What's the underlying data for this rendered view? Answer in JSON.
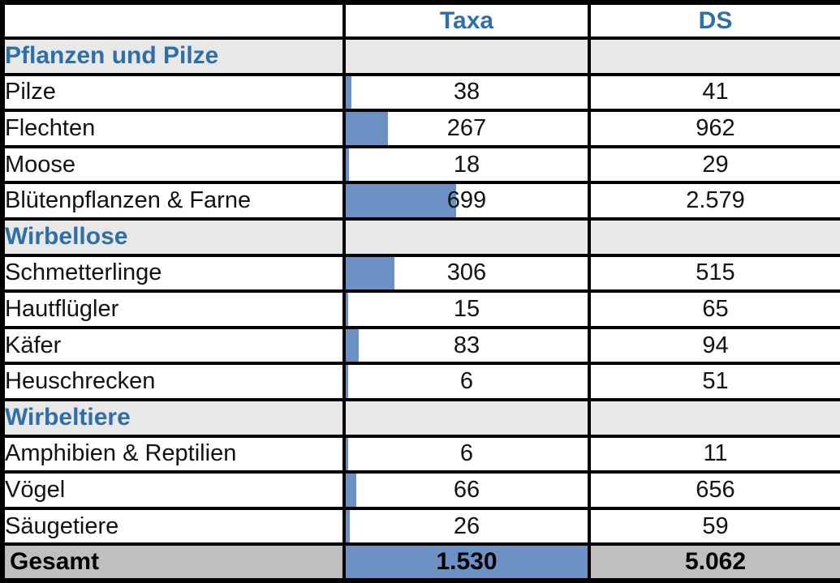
{
  "header": {
    "label_col": "",
    "taxa": "Taxa",
    "ds": "DS"
  },
  "bar_max": 1530,
  "rows": [
    {
      "kind": "section",
      "label": "Pflanzen und Pilze"
    },
    {
      "kind": "data",
      "label": "Pilze",
      "taxa_text": "38",
      "ds_text": "41",
      "taxa_value": 38
    },
    {
      "kind": "data",
      "label": "Flechten",
      "taxa_text": "267",
      "ds_text": "962",
      "taxa_value": 267
    },
    {
      "kind": "data",
      "label": "Moose",
      "taxa_text": "18",
      "ds_text": "29",
      "taxa_value": 18
    },
    {
      "kind": "data",
      "label": "Blütenpflanzen & Farne",
      "taxa_text": "699",
      "ds_text": "2.579",
      "taxa_value": 699
    },
    {
      "kind": "section",
      "label": "Wirbellose"
    },
    {
      "kind": "data",
      "label": "Schmetterlinge",
      "taxa_text": "306",
      "ds_text": "515",
      "taxa_value": 306
    },
    {
      "kind": "data",
      "label": "Hautflügler",
      "taxa_text": "15",
      "ds_text": "65",
      "taxa_value": 15
    },
    {
      "kind": "data",
      "label": "Käfer",
      "taxa_text": "83",
      "ds_text": "94",
      "taxa_value": 83
    },
    {
      "kind": "data",
      "label": "Heuschrecken",
      "taxa_text": "6",
      "ds_text": "51",
      "taxa_value": 6
    },
    {
      "kind": "section",
      "label": "Wirbeltiere"
    },
    {
      "kind": "data",
      "label": "Amphibien & Reptilien",
      "taxa_text": "6",
      "ds_text": "11",
      "taxa_value": 6
    },
    {
      "kind": "data",
      "label": "Vögel",
      "taxa_text": "66",
      "ds_text": "656",
      "taxa_value": 66
    },
    {
      "kind": "data",
      "label": "Säugetiere",
      "taxa_text": "26",
      "ds_text": "59",
      "taxa_value": 26
    }
  ],
  "total_row": {
    "label": "Gesamt",
    "taxa_text": "1.530",
    "ds_text": "5.062",
    "taxa_value": 1530
  },
  "colors": {
    "accent_blue": "#2E6FA8",
    "bar_blue": "#6D91C5",
    "section_bg": "#E8E8E8",
    "total_bg": "#BFBFBF",
    "border_black": "#000000"
  },
  "chart_data": {
    "type": "table",
    "columns": [
      "",
      "Taxa",
      "DS"
    ],
    "bar_column": "Taxa",
    "bar_max": 1530,
    "sections": [
      {
        "name": "Pflanzen und Pilze",
        "rows": [
          [
            "Pilze",
            38,
            41
          ],
          [
            "Flechten",
            267,
            962
          ],
          [
            "Moose",
            18,
            29
          ],
          [
            "Blütenpflanzen & Farne",
            699,
            2579
          ]
        ]
      },
      {
        "name": "Wirbellose",
        "rows": [
          [
            "Schmetterlinge",
            306,
            515
          ],
          [
            "Hautflügler",
            15,
            65
          ],
          [
            "Käfer",
            83,
            94
          ],
          [
            "Heuschrecken",
            6,
            51
          ]
        ]
      },
      {
        "name": "Wirbeltiere",
        "rows": [
          [
            "Amphibien & Reptilien",
            6,
            11
          ],
          [
            "Vögel",
            66,
            656
          ],
          [
            "Säugetiere",
            26,
            59
          ]
        ]
      }
    ],
    "total": [
      "Gesamt",
      1530,
      5062
    ],
    "number_format": "de-DE thousands separator (.)"
  }
}
